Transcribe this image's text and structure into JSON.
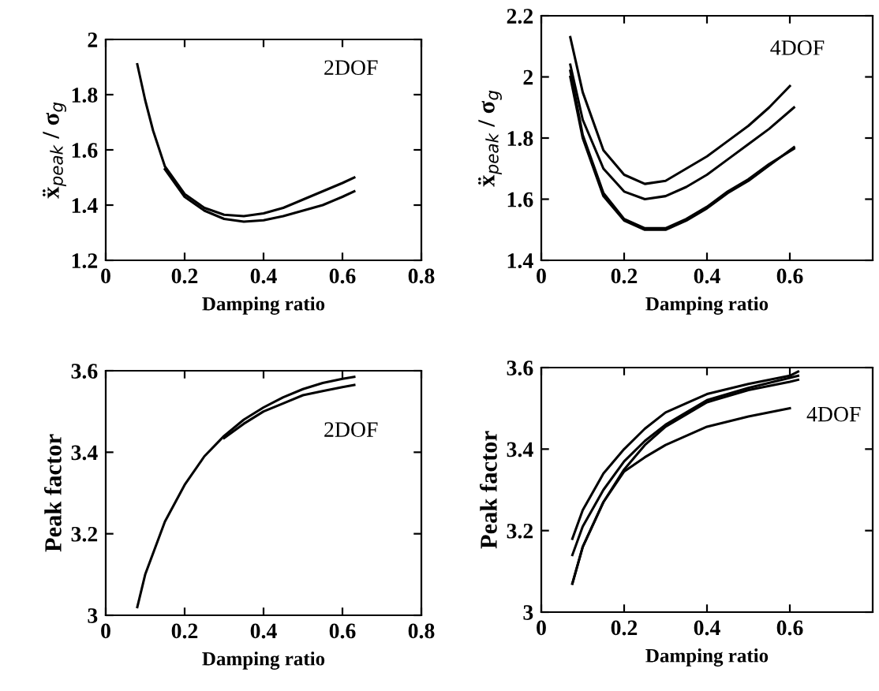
{
  "chart_data": [
    {
      "type": "line",
      "ylabel": "ẍ$_{peak}$ / σ$_{g}$",
      "xlabel": "Damping ratio",
      "annotations": [
        "2DOF"
      ],
      "xlim": [
        0,
        0.8
      ],
      "ylim": [
        1.2,
        2
      ],
      "xticks": [
        0,
        0.2,
        0.4,
        0.6,
        0.8
      ],
      "yticks": [
        1.2,
        1.4,
        1.6,
        1.8,
        2
      ],
      "grid": false,
      "legend": false,
      "marker": "none",
      "line_style": "solid",
      "series": [
        {
          "color": "#000000",
          "x": [
            0.08,
            0.1,
            0.12,
            0.15,
            0.2,
            0.25,
            0.3,
            0.35,
            0.4,
            0.45,
            0.5,
            0.55,
            0.6,
            0.63
          ],
          "values": [
            1.91,
            1.78,
            1.67,
            1.54,
            1.44,
            1.39,
            1.365,
            1.36,
            1.37,
            1.39,
            1.42,
            1.45,
            1.48,
            1.5
          ]
        },
        {
          "color": "#000000",
          "x": [
            0.15,
            0.2,
            0.25,
            0.3,
            0.35,
            0.4,
            0.45,
            0.5,
            0.55,
            0.6,
            0.63
          ],
          "values": [
            1.53,
            1.43,
            1.38,
            1.35,
            1.34,
            1.345,
            1.36,
            1.38,
            1.4,
            1.43,
            1.45
          ]
        }
      ]
    },
    {
      "type": "line",
      "ylabel": "ẍ$_{peak}$ / σ$_{g}$",
      "xlabel": "Damping ratio",
      "annotations": [
        "4DOF"
      ],
      "xlim": [
        0,
        0.8
      ],
      "ylim": [
        1.4,
        2.2
      ],
      "xticks": [
        0,
        0.2,
        0.4,
        0.6
      ],
      "yticks": [
        1.4,
        1.6,
        1.8,
        2,
        2.2
      ],
      "grid": false,
      "legend": false,
      "marker": "none",
      "line_style": "solid",
      "series": [
        {
          "color": "#000000",
          "x": [
            0.07,
            0.1,
            0.15,
            0.2,
            0.25,
            0.3,
            0.35,
            0.4,
            0.45,
            0.5,
            0.55,
            0.6
          ],
          "values": [
            2.13,
            1.95,
            1.76,
            1.68,
            1.65,
            1.66,
            1.7,
            1.74,
            1.79,
            1.84,
            1.9,
            1.97
          ]
        },
        {
          "color": "#000000",
          "x": [
            0.07,
            0.1,
            0.15,
            0.2,
            0.25,
            0.3,
            0.35,
            0.4,
            0.45,
            0.5,
            0.55,
            0.61
          ],
          "values": [
            2.04,
            1.86,
            1.7,
            1.625,
            1.6,
            1.61,
            1.64,
            1.68,
            1.73,
            1.78,
            1.83,
            1.9
          ]
        },
        {
          "color": "#000000",
          "x": [
            0.07,
            0.1,
            0.15,
            0.2,
            0.25,
            0.3,
            0.35,
            0.4,
            0.45,
            0.5,
            0.55,
            0.61
          ],
          "values": [
            2.0,
            1.8,
            1.61,
            1.53,
            1.5,
            1.5,
            1.53,
            1.57,
            1.62,
            1.66,
            1.71,
            1.77
          ]
        },
        {
          "color": "#000000",
          "x": [
            0.07,
            0.1,
            0.15,
            0.2,
            0.25,
            0.3,
            0.35,
            0.4,
            0.45,
            0.5,
            0.55,
            0.61
          ],
          "values": [
            2.02,
            1.81,
            1.62,
            1.535,
            1.505,
            1.505,
            1.535,
            1.575,
            1.625,
            1.665,
            1.715,
            1.765
          ]
        }
      ]
    },
    {
      "type": "line",
      "ylabel": "Peak factor",
      "xlabel": "Damping ratio",
      "annotations": [
        "2DOF"
      ],
      "xlim": [
        0,
        0.8
      ],
      "ylim": [
        3,
        3.6
      ],
      "xticks": [
        0,
        0.2,
        0.4,
        0.6,
        0.8
      ],
      "yticks": [
        3,
        3.2,
        3.4,
        3.6
      ],
      "grid": false,
      "legend": false,
      "marker": "none",
      "line_style": "solid",
      "series": [
        {
          "color": "#000000",
          "x": [
            0.08,
            0.1,
            0.15,
            0.2,
            0.25,
            0.3,
            0.35,
            0.4,
            0.45,
            0.5,
            0.55,
            0.6,
            0.63
          ],
          "values": [
            3.02,
            3.1,
            3.23,
            3.32,
            3.39,
            3.44,
            3.48,
            3.51,
            3.535,
            3.555,
            3.57,
            3.58,
            3.585
          ]
        },
        {
          "color": "#000000",
          "x": [
            0.3,
            0.35,
            0.4,
            0.45,
            0.5,
            0.55,
            0.6,
            0.63
          ],
          "values": [
            3.435,
            3.47,
            3.5,
            3.52,
            3.54,
            3.55,
            3.56,
            3.565
          ]
        }
      ]
    },
    {
      "type": "line",
      "ylabel": "Peak factor",
      "xlabel": "Damping ratio",
      "annotations": [
        "4DOF"
      ],
      "xlim": [
        0,
        0.8
      ],
      "ylim": [
        3,
        3.6
      ],
      "xticks": [
        0,
        0.2,
        0.4,
        0.6
      ],
      "yticks": [
        3,
        3.2,
        3.4,
        3.6
      ],
      "grid": false,
      "legend": false,
      "marker": "none",
      "line_style": "solid",
      "series": [
        {
          "color": "#000000",
          "x": [
            0.075,
            0.1,
            0.15,
            0.2,
            0.25,
            0.3,
            0.4,
            0.5,
            0.6,
            0.62
          ],
          "values": [
            3.18,
            3.25,
            3.34,
            3.4,
            3.45,
            3.49,
            3.535,
            3.56,
            3.58,
            3.59
          ]
        },
        {
          "color": "#000000",
          "x": [
            0.075,
            0.1,
            0.15,
            0.2,
            0.25,
            0.3,
            0.4,
            0.5,
            0.6,
            0.62
          ],
          "values": [
            3.14,
            3.21,
            3.3,
            3.37,
            3.42,
            3.46,
            3.52,
            3.55,
            3.575,
            3.58
          ]
        },
        {
          "color": "#000000",
          "x": [
            0.075,
            0.1,
            0.15,
            0.2,
            0.25,
            0.3,
            0.4,
            0.5,
            0.6,
            0.62
          ],
          "values": [
            3.07,
            3.16,
            3.27,
            3.35,
            3.41,
            3.455,
            3.515,
            3.545,
            3.565,
            3.57
          ]
        },
        {
          "color": "#000000",
          "x": [
            0.075,
            0.1,
            0.15,
            0.2,
            0.25,
            0.3,
            0.4,
            0.5,
            0.6
          ],
          "values": [
            3.07,
            3.16,
            3.27,
            3.345,
            3.38,
            3.41,
            3.455,
            3.48,
            3.5
          ]
        }
      ]
    }
  ]
}
